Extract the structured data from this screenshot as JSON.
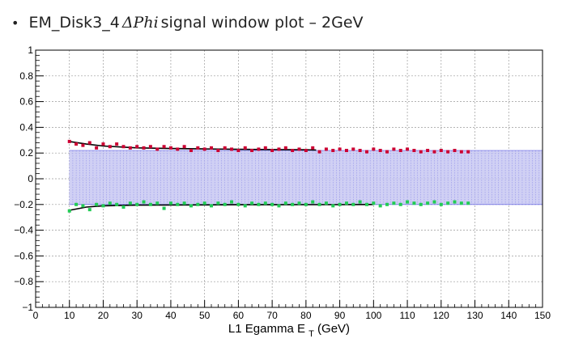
{
  "slide": {
    "bullet": "•",
    "title_prefix": "EM_Disk3_4",
    "title_var": "ΔPhi",
    "title_suffix": "signal window plot – 2GeV"
  },
  "colors": {
    "upper_points": "#cc0033",
    "lower_points": "#22cc55",
    "fit_line": "#000000",
    "band_fill": "#c8c8f2",
    "band_lines": "#4a4ae0",
    "grid": "#9a9a9a"
  },
  "chart_data": {
    "type": "scatter",
    "title": "",
    "xlabel": "L1 Egamma E",
    "xlabel_sub": "T",
    "xlabel_unit": "(GeV)",
    "ylabel": "",
    "xlim": [
      0,
      150
    ],
    "ylim": [
      -1,
      1
    ],
    "x_ticks": [
      0,
      10,
      20,
      30,
      40,
      50,
      60,
      70,
      80,
      90,
      100,
      110,
      120,
      130,
      140,
      150
    ],
    "y_ticks": [
      -1,
      -0.8,
      -0.6,
      -0.4,
      -0.2,
      0,
      0.2,
      0.4,
      0.6,
      0.8,
      1
    ],
    "grid": true,
    "band": {
      "x_start": 10,
      "x_end": 150,
      "upper": 0.22,
      "lower": -0.2
    },
    "series": [
      {
        "x": [
          10,
          12,
          14,
          16,
          18,
          20,
          22,
          24,
          26,
          28,
          30,
          32,
          34,
          36,
          38,
          40,
          42,
          44,
          46,
          48,
          50,
          52,
          54,
          56,
          58,
          60,
          62,
          64,
          66,
          68,
          70,
          72,
          74,
          76,
          78,
          80,
          82,
          84,
          86,
          88,
          90,
          92,
          94,
          96,
          98,
          100,
          102,
          104,
          106,
          108,
          110,
          112,
          114,
          116,
          118,
          120,
          122,
          124,
          126,
          128
        ],
        "y": [
          0.29,
          0.27,
          0.26,
          0.28,
          0.24,
          0.27,
          0.25,
          0.27,
          0.25,
          0.24,
          0.25,
          0.24,
          0.25,
          0.23,
          0.25,
          0.24,
          0.23,
          0.25,
          0.22,
          0.24,
          0.23,
          0.24,
          0.22,
          0.24,
          0.23,
          0.22,
          0.24,
          0.22,
          0.23,
          0.24,
          0.22,
          0.23,
          0.24,
          0.22,
          0.23,
          0.22,
          0.24,
          0.21,
          0.23,
          0.22,
          0.23,
          0.22,
          0.23,
          0.22,
          0.21,
          0.23,
          0.22,
          0.21,
          0.23,
          0.22,
          0.23,
          0.22,
          0.21,
          0.22,
          0.21,
          0.22,
          0.21,
          0.22,
          0.21,
          0.21
        ]
      },
      {
        "x": [
          10,
          12,
          14,
          16,
          18,
          20,
          22,
          24,
          26,
          28,
          30,
          32,
          34,
          36,
          38,
          40,
          42,
          44,
          46,
          48,
          50,
          52,
          54,
          56,
          58,
          60,
          62,
          64,
          66,
          68,
          70,
          72,
          74,
          76,
          78,
          80,
          82,
          84,
          86,
          88,
          90,
          92,
          94,
          96,
          98,
          100,
          102,
          104,
          106,
          108,
          110,
          112,
          114,
          116,
          118,
          120,
          122,
          124,
          126,
          128
        ],
        "y": [
          -0.25,
          -0.2,
          -0.21,
          -0.24,
          -0.2,
          -0.21,
          -0.19,
          -0.2,
          -0.22,
          -0.19,
          -0.2,
          -0.18,
          -0.2,
          -0.19,
          -0.23,
          -0.19,
          -0.2,
          -0.19,
          -0.21,
          -0.2,
          -0.19,
          -0.21,
          -0.19,
          -0.2,
          -0.18,
          -0.2,
          -0.21,
          -0.19,
          -0.2,
          -0.19,
          -0.2,
          -0.21,
          -0.19,
          -0.2,
          -0.19,
          -0.2,
          -0.18,
          -0.2,
          -0.19,
          -0.21,
          -0.2,
          -0.19,
          -0.2,
          -0.18,
          -0.2,
          -0.19,
          -0.21,
          -0.2,
          -0.19,
          -0.2,
          -0.18,
          -0.19,
          -0.2,
          -0.19,
          -0.18,
          -0.2,
          -0.19,
          -0.18,
          -0.19,
          -0.19
        ]
      }
    ],
    "fits": [
      {
        "x": [
          10,
          15,
          20,
          30,
          40,
          50,
          60,
          70,
          80,
          83
        ],
        "y": [
          0.29,
          0.27,
          0.255,
          0.24,
          0.235,
          0.232,
          0.229,
          0.227,
          0.225,
          0.224
        ]
      },
      {
        "x": [
          10,
          15,
          20,
          30,
          40,
          50,
          60,
          70,
          80,
          90,
          100
        ],
        "y": [
          -0.245,
          -0.22,
          -0.21,
          -0.205,
          -0.204,
          -0.203,
          -0.202,
          -0.202,
          -0.201,
          -0.201,
          -0.2
        ]
      }
    ]
  }
}
